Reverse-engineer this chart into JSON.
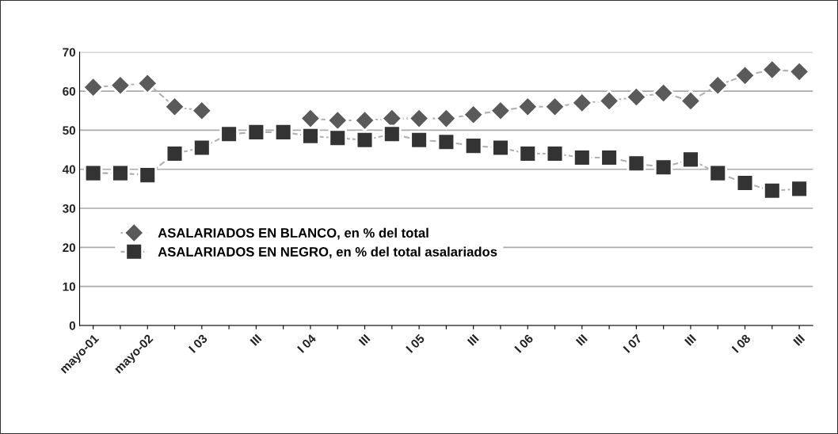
{
  "chart_data": {
    "type": "line",
    "categories": [
      "mayo-01",
      null,
      "mayo-02",
      null,
      "I 03",
      null,
      "III",
      null,
      "I 04",
      null,
      "III",
      null,
      "I 05",
      null,
      "III",
      null,
      "I 06",
      null,
      "III",
      null,
      "I 07",
      null,
      "III",
      null,
      "I 08",
      null,
      "III"
    ],
    "series": [
      {
        "name": "ASALARIADOS EN BLANCO, en % del total",
        "color": "#5a5a5a",
        "marker": "diamond",
        "values": [
          61,
          61.5,
          62,
          56,
          55,
          null,
          null,
          null,
          53,
          52.5,
          52.5,
          53,
          53,
          53,
          54,
          55,
          56,
          56,
          57,
          57.5,
          58.5,
          59.5,
          57.5,
          61.5,
          64,
          65.5,
          65
        ]
      },
      {
        "name": "ASALARIADOS EN NEGRO, en % del total asalariados",
        "color": "#333333",
        "marker": "square",
        "values": [
          39,
          39,
          38.5,
          44,
          45.5,
          49,
          49.5,
          49.5,
          48.5,
          48,
          47.5,
          49,
          47.5,
          47,
          46,
          45.5,
          44,
          44,
          43,
          43,
          41.5,
          40.5,
          42.5,
          39,
          36.5,
          34.5,
          35
        ]
      }
    ],
    "ylim": [
      0,
      70
    ],
    "yticks": [
      0,
      10,
      20,
      30,
      40,
      50,
      60,
      70
    ],
    "grid": "y",
    "legend": "left",
    "line_style": "dashed"
  }
}
